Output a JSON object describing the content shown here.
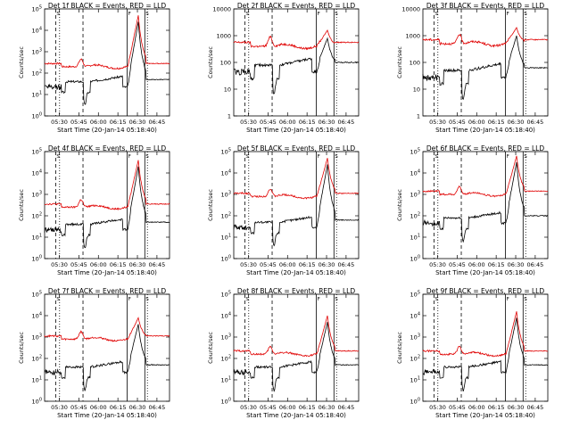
{
  "colors": {
    "events": "#000000",
    "lld": "#e00000",
    "axis": "#000000"
  },
  "chart_data": [
    {
      "type": "line",
      "title": "Det 1f BLACK = Events, RED = LLD",
      "xlabel": "Start Time (20-Jan-14 05:18:40)",
      "ylabel": "Counts/sec",
      "x_ticks": [
        "05:30",
        "05:45",
        "06:00",
        "06:15",
        "06:30",
        "06:45"
      ],
      "y_ticks": [
        "10^0",
        "10^1",
        "10^2",
        "10^3",
        "10^4",
        "10^5"
      ],
      "y_scale": "log",
      "ylim": [
        1,
        100000
      ],
      "series": [
        {
          "color": "red",
          "peaks": [
            {
              "t": 50,
              "h": 0.45,
              "w": 5
            },
            {
              "t": 70,
              "h": 1.0,
              "w": 8
            }
          ],
          "base": 2.4
        },
        {
          "color": "black",
          "base": 1.6
        }
      ],
      "markers": [
        "S",
        "S",
        "F"
      ]
    },
    {
      "type": "line",
      "title": "Det 2f BLACK = Events, RED = LLD",
      "xlabel": "Start Time (20-Jan-14 05:18:40)",
      "ylabel": "Counts/sec",
      "x_ticks": [
        "05:30",
        "05:45",
        "06:00",
        "06:15",
        "06:30",
        "06:45"
      ],
      "y_ticks": [
        "1",
        "10",
        "100",
        "1000",
        "10000"
      ],
      "y_scale": "log",
      "ylim": [
        1,
        10000
      ],
      "markers": [
        "S",
        "S",
        "F"
      ]
    },
    {
      "type": "line",
      "title": "Det 3f BLACK = Events, RED = LLD",
      "xlabel": "Start Time (20-Jan-14 05:18:40)",
      "ylabel": "Counts/sec",
      "x_ticks": [
        "05:30",
        "05:45",
        "06:00",
        "06:15",
        "06:30",
        "06:45"
      ],
      "y_ticks": [
        "1",
        "10",
        "100",
        "1000",
        "10000"
      ],
      "y_scale": "log",
      "ylim": [
        1,
        10000
      ],
      "markers": [
        "S",
        "S",
        "F"
      ]
    },
    {
      "type": "line",
      "title": "Det 4f BLACK = Events, RED = LLD",
      "xlabel": "Start Time (20-Jan-14 05:18:40)",
      "ylabel": "Counts/sec",
      "x_ticks": [
        "05:30",
        "05:45",
        "06:00",
        "06:15",
        "06:30",
        "06:45"
      ],
      "y_ticks": [
        "10^0",
        "10^1",
        "10^2",
        "10^3",
        "10^4",
        "10^5"
      ],
      "y_scale": "log",
      "ylim": [
        1,
        100000
      ],
      "markers": [
        "S",
        "S",
        "F"
      ]
    },
    {
      "type": "line",
      "title": "Det 5f BLACK = Events, RED = LLD",
      "xlabel": "Start Time (20-Jan-14 05:18:40)",
      "ylabel": "Counts/sec",
      "x_ticks": [
        "05:30",
        "05:45",
        "06:00",
        "06:15",
        "06:30",
        "06:45"
      ],
      "y_ticks": [
        "10^0",
        "10^1",
        "10^2",
        "10^3",
        "10^4",
        "10^5"
      ],
      "y_scale": "log",
      "ylim": [
        1,
        100000
      ],
      "markers": [
        "S",
        "S",
        "F"
      ]
    },
    {
      "type": "line",
      "title": "Det 6f BLACK = Events, RED = LLD",
      "xlabel": "Start Time (20-Jan-14 05:18:40)",
      "ylabel": "Counts/sec",
      "x_ticks": [
        "05:30",
        "05:45",
        "06:00",
        "06:15",
        "06:30",
        "06:45"
      ],
      "y_ticks": [
        "10^0",
        "10^1",
        "10^2",
        "10^3",
        "10^4",
        "10^5"
      ],
      "y_scale": "log",
      "ylim": [
        1,
        100000
      ],
      "markers": [
        "S",
        "S",
        "F"
      ]
    },
    {
      "type": "line",
      "title": "Det 7f BLACK = Events, RED = LLD",
      "xlabel": "Start Time (20-Jan-14 05:18:40)",
      "ylabel": "Counts/sec",
      "x_ticks": [
        "05:30",
        "05:45",
        "06:00",
        "06:15",
        "06:30",
        "06:45"
      ],
      "y_ticks": [
        "10^0",
        "10^1",
        "10^2",
        "10^3",
        "10^4",
        "10^5"
      ],
      "y_scale": "log",
      "ylim": [
        1,
        100000
      ],
      "markers": [
        "S",
        "S",
        "F"
      ]
    },
    {
      "type": "line",
      "title": "Det 8f BLACK = Events, RED = LLD",
      "xlabel": "Start Time (20-Jan-14 05:18:40)",
      "ylabel": "Counts/sec",
      "x_ticks": [
        "05:30",
        "05:45",
        "06:00",
        "06:15",
        "06:30",
        "06:45"
      ],
      "y_ticks": [
        "10^0",
        "10^1",
        "10^2",
        "10^3",
        "10^4",
        "10^5"
      ],
      "y_scale": "log",
      "ylim": [
        1,
        100000
      ],
      "markers": [
        "S",
        "S",
        "F"
      ]
    },
    {
      "type": "line",
      "title": "Det 9f BLACK = Events, RED = LLD",
      "xlabel": "Start Time (20-Jan-14 05:18:40)",
      "ylabel": "Counts/sec",
      "x_ticks": [
        "05:30",
        "05:45",
        "06:00",
        "06:15",
        "06:30",
        "06:45"
      ],
      "y_ticks": [
        "10^0",
        "10^1",
        "10^2",
        "10^3",
        "10^4",
        "10^5"
      ],
      "y_scale": "log",
      "ylim": [
        1,
        100000
      ],
      "markers": [
        "S",
        "S",
        "F"
      ]
    }
  ]
}
